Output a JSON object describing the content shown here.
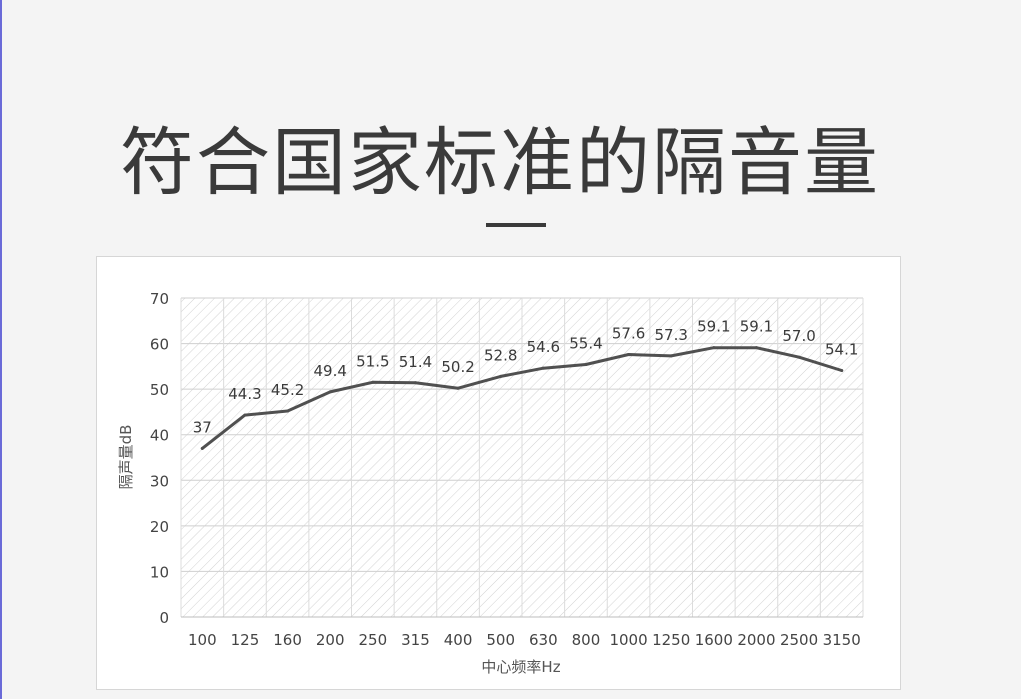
{
  "headline": "符合国家标准的隔音量",
  "chart_data": {
    "type": "line",
    "xlabel": "中心频率Hz",
    "ylabel": "隔声量dB",
    "ylim": [
      0,
      70
    ],
    "yticks": [
      0,
      10,
      20,
      30,
      40,
      50,
      60,
      70
    ],
    "grid": true,
    "legend": "none",
    "categories": [
      "100",
      "125",
      "160",
      "200",
      "250",
      "315",
      "400",
      "500",
      "630",
      "800",
      "1000",
      "1250",
      "1600",
      "2000",
      "2500",
      "3150"
    ],
    "series": [
      {
        "values": [
          37,
          44.3,
          45.2,
          49.4,
          51.5,
          51.4,
          50.2,
          52.8,
          54.6,
          55.4,
          57.6,
          57.3,
          59.1,
          59.1,
          57.0,
          54.1
        ],
        "labels": [
          "37",
          "44.3",
          "45.2",
          "49.4",
          "51.5",
          "51.4",
          "50.2",
          "52.8",
          "54.6",
          "55.4",
          "57.6",
          "57.3",
          "59.1",
          "59.1",
          "57.0",
          "54.1"
        ],
        "color": "#505050"
      }
    ]
  }
}
